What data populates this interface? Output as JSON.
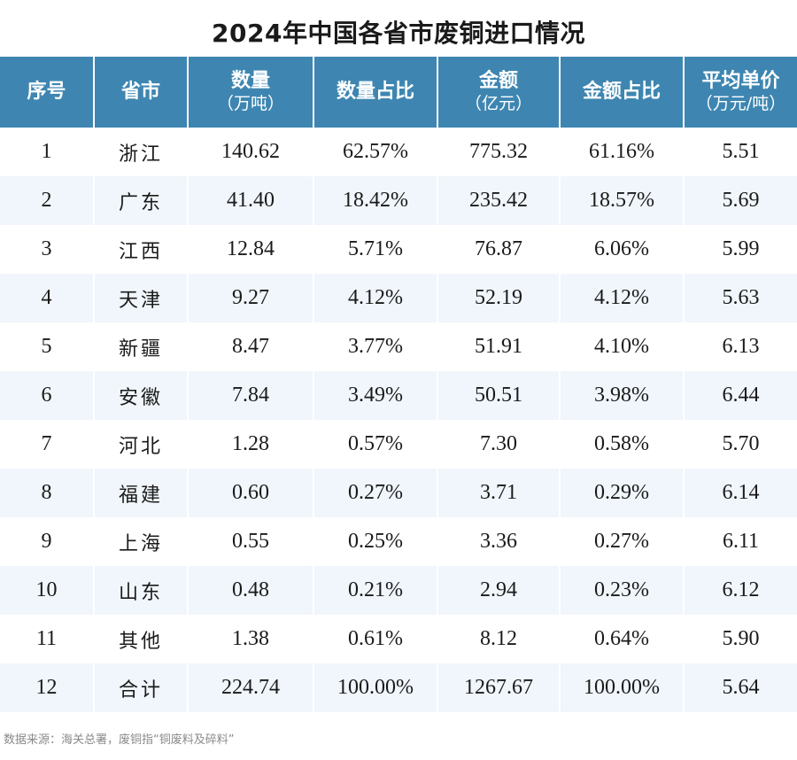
{
  "title": "2024年中国各省市废铜进口情况",
  "headers": [
    {
      "main": "序号",
      "sub": ""
    },
    {
      "main": "省市",
      "sub": ""
    },
    {
      "main": "数量",
      "sub": "（万吨）"
    },
    {
      "main": "数量占比",
      "sub": ""
    },
    {
      "main": "金额",
      "sub": "（亿元）"
    },
    {
      "main": "金额占比",
      "sub": ""
    },
    {
      "main": "平均单价",
      "sub": "（万元/吨）"
    }
  ],
  "rows": [
    [
      "1",
      "浙江",
      "140.62",
      "62.57%",
      "775.32",
      "61.16%",
      "5.51"
    ],
    [
      "2",
      "广东",
      "41.40",
      "18.42%",
      "235.42",
      "18.57%",
      "5.69"
    ],
    [
      "3",
      "江西",
      "12.84",
      "5.71%",
      "76.87",
      "6.06%",
      "5.99"
    ],
    [
      "4",
      "天津",
      "9.27",
      "4.12%",
      "52.19",
      "4.12%",
      "5.63"
    ],
    [
      "5",
      "新疆",
      "8.47",
      "3.77%",
      "51.91",
      "4.10%",
      "6.13"
    ],
    [
      "6",
      "安徽",
      "7.84",
      "3.49%",
      "50.51",
      "3.98%",
      "6.44"
    ],
    [
      "7",
      "河北",
      "1.28",
      "0.57%",
      "7.30",
      "0.58%",
      "5.70"
    ],
    [
      "8",
      "福建",
      "0.60",
      "0.27%",
      "3.71",
      "0.29%",
      "6.14"
    ],
    [
      "9",
      "上海",
      "0.55",
      "0.25%",
      "3.36",
      "0.27%",
      "6.11"
    ],
    [
      "10",
      "山东",
      "0.48",
      "0.21%",
      "2.94",
      "0.23%",
      "6.12"
    ],
    [
      "11",
      "其他",
      "1.38",
      "0.61%",
      "8.12",
      "0.64%",
      "5.90"
    ],
    [
      "12",
      "合计",
      "224.74",
      "100.00%",
      "1267.67",
      "100.00%",
      "5.64"
    ]
  ],
  "source": "数据来源：海关总署，废铜指“铜废料及碎料”",
  "colors": {
    "header_bg": "#3e86b1",
    "header_text": "#ffffff",
    "stripe": "#f0f6fb"
  }
}
